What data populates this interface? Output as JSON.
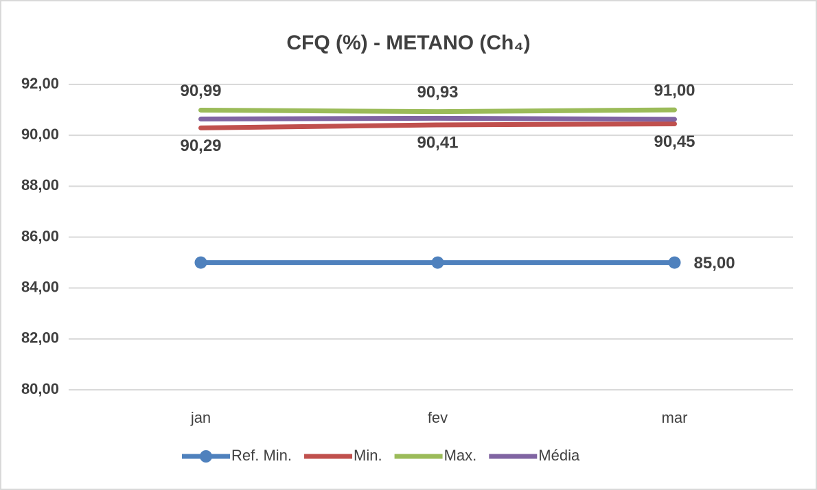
{
  "chart_data": {
    "type": "line",
    "title": "CFQ (%) - METANO (Ch₄)",
    "categories": [
      "jan",
      "fev",
      "mar"
    ],
    "ylim": [
      80,
      92
    ],
    "yticks": [
      {
        "value": 80,
        "label": "80,00"
      },
      {
        "value": 82,
        "label": "82,00"
      },
      {
        "value": 84,
        "label": "84,00"
      },
      {
        "value": 86,
        "label": "86,00"
      },
      {
        "value": 88,
        "label": "88,00"
      },
      {
        "value": 90,
        "label": "90,00"
      },
      {
        "value": 92,
        "label": "92,00"
      }
    ],
    "grid": true,
    "legend": "bottom",
    "series": [
      {
        "name": "Ref. Min.",
        "color": "#4f81bd",
        "markers": true,
        "values": [
          85,
          85,
          85
        ],
        "value_labels": [
          null,
          null,
          "85,00"
        ],
        "label_color": "#ff0000",
        "label_position": "right"
      },
      {
        "name": "Min.",
        "color": "#c0504d",
        "values": [
          90.29,
          90.41,
          90.45
        ],
        "value_labels": [
          "90,29",
          "90,41",
          "90,45"
        ],
        "label_color": "#262626",
        "label_position": "below"
      },
      {
        "name": "Max.",
        "color": "#9bbb59",
        "values": [
          90.99,
          90.93,
          91.0
        ],
        "value_labels": [
          "90,99",
          "90,93",
          "91,00"
        ],
        "label_color": "#262626",
        "label_position": "above"
      },
      {
        "name": "Média",
        "color": "#8064a2",
        "values": [
          90.64,
          90.67,
          90.63
        ]
      }
    ]
  }
}
